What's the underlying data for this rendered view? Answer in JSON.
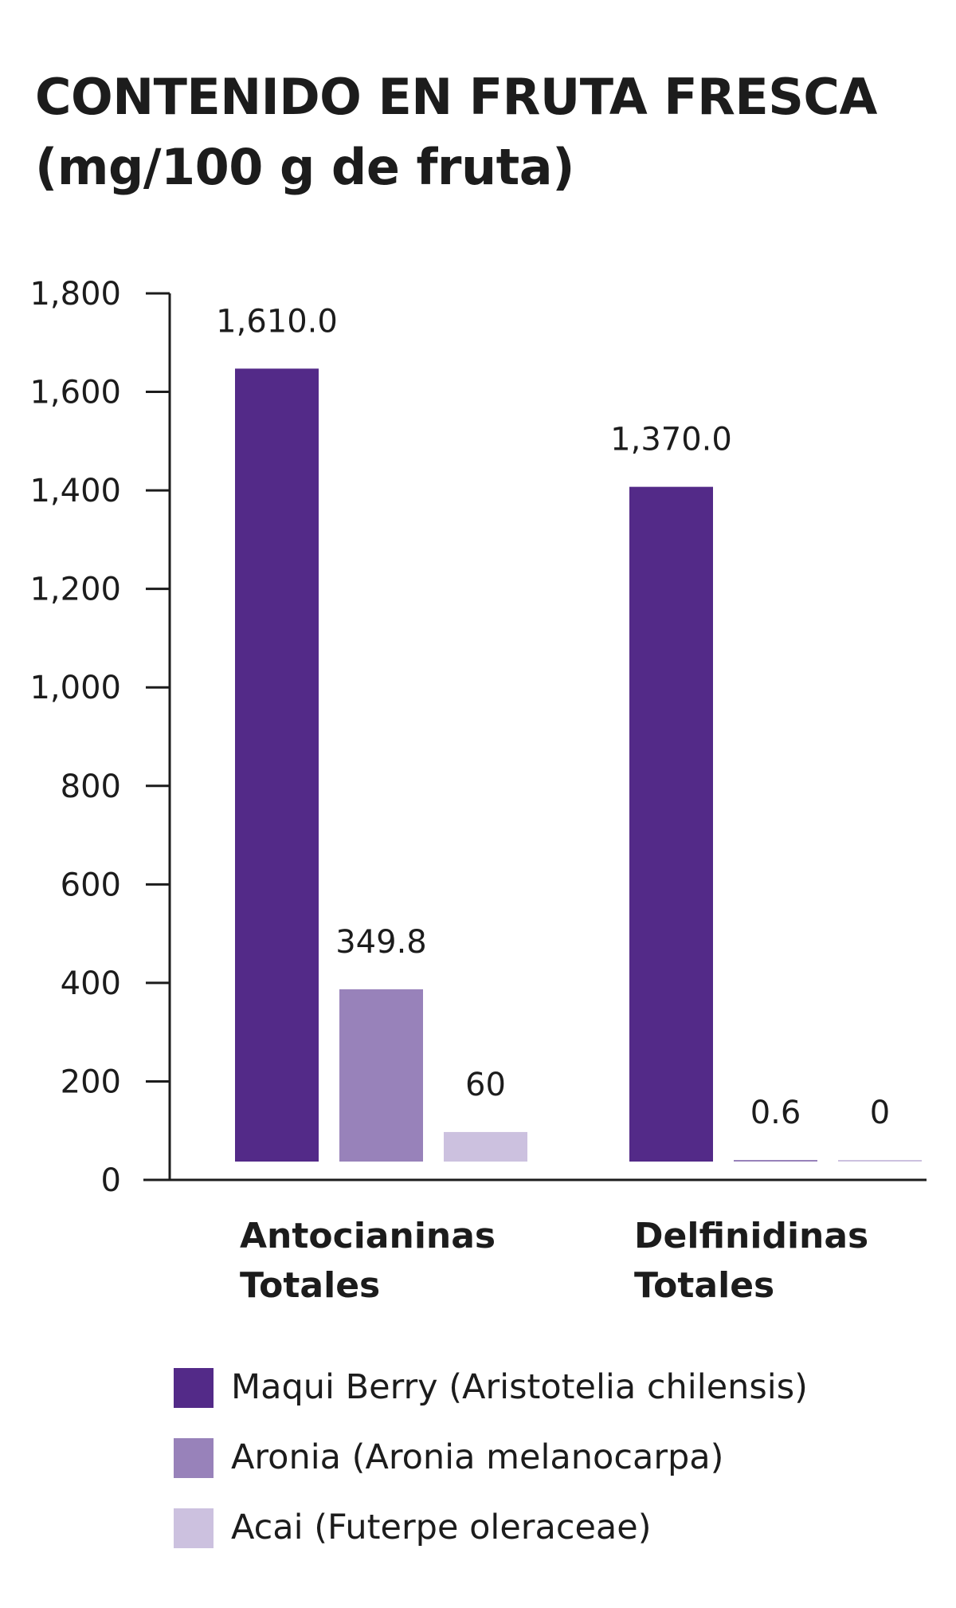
{
  "chart_data": {
    "type": "bar",
    "title": [
      "CONTENIDO EN FRUTA FRESCA",
      "(mg/100 g de fruta)"
    ],
    "ylim": [
      0,
      1800
    ],
    "yticks": [
      "0",
      "200",
      "400",
      "600",
      "800",
      "1,000",
      "1,200",
      "1,400",
      "1,600",
      "1,800"
    ],
    "ytick_values": [
      0,
      200,
      400,
      600,
      800,
      1000,
      1200,
      1400,
      1600,
      1800
    ],
    "categories": [
      [
        "Antocianinas",
        "Totales"
      ],
      [
        "Delfinidinas",
        "Totales"
      ]
    ],
    "series": [
      {
        "name": "Maqui Berry (Aristotelia chilensis)",
        "color": "#532a88",
        "values": [
          1610.0,
          1370.0
        ],
        "labels": [
          "1,610.0",
          "1,370.0"
        ]
      },
      {
        "name": "Aronia (Aronia melanocarpa)",
        "color": "#9882ba",
        "values": [
          349.8,
          0.6
        ],
        "labels": [
          "349.8",
          "0.6"
        ]
      },
      {
        "name": "Acai (Futerpe oleraceae)",
        "color": "#ccc1df",
        "values": [
          60,
          0
        ],
        "labels": [
          "60",
          "0"
        ]
      }
    ],
    "legend_position": "bottom-left",
    "grid": false
  }
}
